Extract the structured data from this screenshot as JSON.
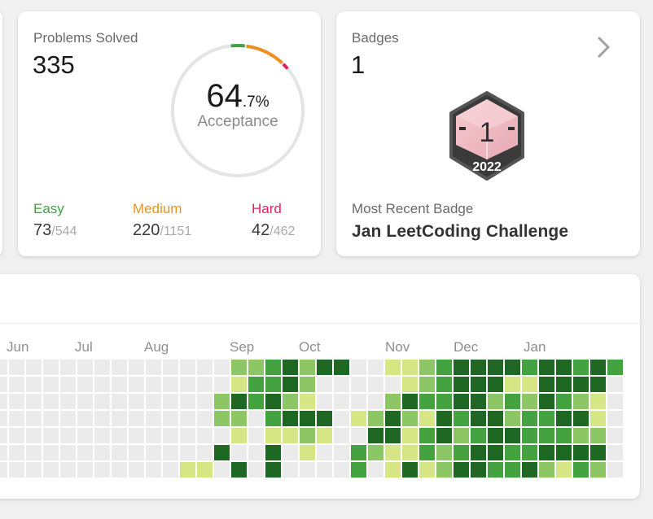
{
  "solved": {
    "title": "Problems Solved",
    "count": "335",
    "acceptance_main": "64",
    "acceptance_decimal": ".7%",
    "acceptance_label": "Acceptance",
    "acceptance_rate": 0.647,
    "easy": {
      "label": "Easy",
      "solved": "73",
      "total": "/544",
      "color": "#43a047"
    },
    "medium": {
      "label": "Medium",
      "solved": "220",
      "total": "/1151",
      "color": "#ef8f1d"
    },
    "hard": {
      "label": "Hard",
      "solved": "42",
      "total": "/462",
      "color": "#e91e63"
    }
  },
  "badges": {
    "title": "Badges",
    "count": "1",
    "recent_label": "Most Recent Badge",
    "recent_name": "Jan LeetCoding Challenge",
    "badge_number": "1",
    "badge_year": "2022"
  },
  "heatmap": {
    "months": [
      "Jun",
      "Jul",
      "Aug",
      "Sep",
      "Oct",
      "Nov",
      "Dec",
      "Jan"
    ],
    "colors": [
      "#ebebeb",
      "#d6e685",
      "#8cc665",
      "#44a340",
      "#1e6823"
    ],
    "weeks": [
      [
        0,
        0,
        0,
        0,
        0,
        0,
        0
      ],
      [
        0,
        0,
        0,
        0,
        0,
        0,
        0
      ],
      [
        0,
        0,
        0,
        0,
        0,
        0,
        0
      ],
      [
        0,
        0,
        0,
        0,
        0,
        0,
        0
      ],
      [
        0,
        0,
        0,
        0,
        0,
        0,
        0
      ],
      [
        0,
        0,
        0,
        0,
        0,
        0,
        0
      ],
      [
        0,
        0,
        0,
        0,
        0,
        0,
        0
      ],
      [
        0,
        0,
        0,
        0,
        0,
        0,
        0
      ],
      [
        0,
        0,
        0,
        0,
        0,
        0,
        0
      ],
      [
        0,
        0,
        0,
        0,
        0,
        0,
        0
      ],
      [
        0,
        0,
        0,
        0,
        0,
        0,
        0
      ],
      [
        0,
        0,
        0,
        0,
        0,
        0,
        1
      ],
      [
        0,
        0,
        0,
        0,
        0,
        0,
        1
      ],
      [
        0,
        0,
        2,
        2,
        0,
        4,
        0
      ],
      [
        2,
        1,
        4,
        2,
        1,
        0,
        4
      ],
      [
        2,
        3,
        3,
        0,
        0,
        0,
        0
      ],
      [
        3,
        3,
        4,
        3,
        1,
        4,
        4
      ],
      [
        4,
        4,
        2,
        4,
        1,
        0,
        0
      ],
      [
        2,
        2,
        1,
        4,
        2,
        1,
        0
      ],
      [
        4,
        0,
        0,
        4,
        1,
        0,
        0
      ],
      [
        4,
        0,
        0,
        0,
        0,
        0,
        0
      ],
      [
        0,
        0,
        0,
        1,
        0,
        3,
        3
      ],
      [
        0,
        0,
        0,
        2,
        4,
        2,
        0
      ],
      [
        1,
        0,
        2,
        4,
        4,
        1,
        1
      ],
      [
        1,
        1,
        4,
        2,
        1,
        1,
        4
      ],
      [
        2,
        2,
        3,
        1,
        3,
        3,
        1
      ],
      [
        3,
        3,
        3,
        4,
        4,
        2,
        2
      ],
      [
        4,
        4,
        4,
        3,
        2,
        3,
        4
      ],
      [
        4,
        4,
        4,
        4,
        3,
        4,
        4
      ],
      [
        4,
        4,
        2,
        4,
        4,
        4,
        3
      ],
      [
        4,
        1,
        3,
        2,
        4,
        3,
        3
      ],
      [
        3,
        1,
        2,
        3,
        3,
        3,
        4
      ],
      [
        4,
        4,
        4,
        3,
        3,
        4,
        2
      ],
      [
        4,
        4,
        3,
        4,
        3,
        4,
        1
      ],
      [
        3,
        4,
        2,
        4,
        2,
        4,
        3
      ],
      [
        4,
        4,
        1,
        1,
        2,
        4,
        2
      ],
      [
        3,
        0,
        0,
        0,
        0,
        0,
        0
      ]
    ]
  }
}
